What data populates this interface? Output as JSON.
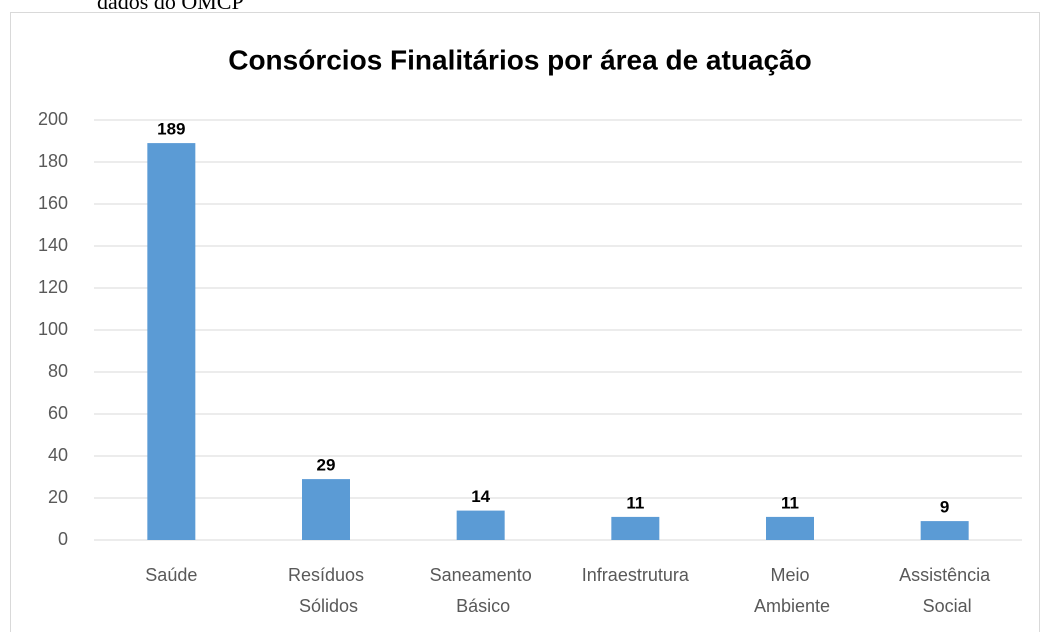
{
  "caption": "dados do OMCP",
  "chart_data": {
    "type": "bar",
    "title": "Consórcios Finalitários por área de atuação",
    "categories": [
      "Saúde",
      "Resíduos Sólidos",
      "Saneamento Básico",
      "Infraestrutura",
      "Meio Ambiente",
      "Assistência Social"
    ],
    "values": [
      189,
      29,
      14,
      11,
      11,
      9
    ],
    "color": "#5b9bd5",
    "ylim": [
      0,
      200
    ],
    "yticks": [
      0,
      20,
      40,
      60,
      80,
      100,
      120,
      140,
      160,
      180,
      200
    ],
    "grid": true,
    "data_labels": true
  }
}
